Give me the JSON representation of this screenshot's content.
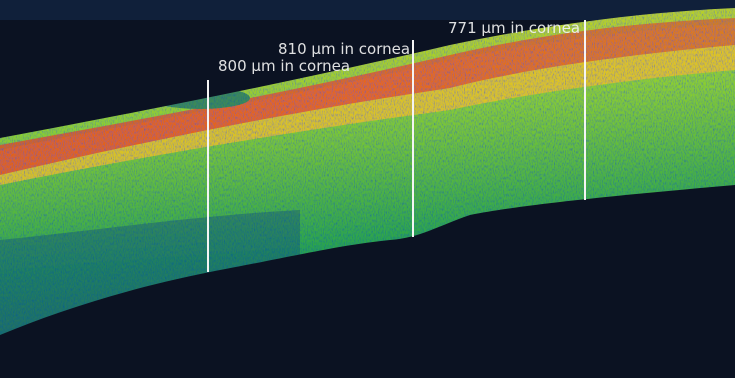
{
  "annotations": [
    {
      "label": "800 μm in cornea"
    },
    {
      "label": "810 μm in cornea"
    },
    {
      "label": "771 μm in cornea"
    }
  ]
}
